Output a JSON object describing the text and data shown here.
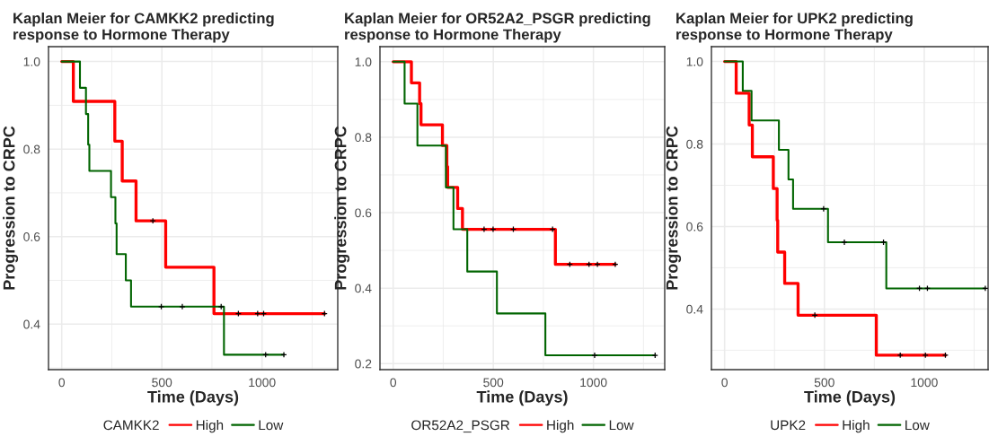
{
  "chart_data": [
    {
      "type": "step",
      "title": "Kaplan Meier for CAMKK2 predicting\nresponse to Hormone Therapy",
      "xlabel": "Time (Days)",
      "ylabel": "Progression to CRPC",
      "legend_title": "CAMKK2",
      "legend": "bottom",
      "grid": true,
      "xlim": [
        -66,
        1378
      ],
      "ylim": [
        0.296,
        1.034
      ],
      "xticks": [
        0,
        500,
        1000
      ],
      "yticks": [
        {
          "value": 0.4,
          "label": "0.4"
        },
        {
          "value": 0.6,
          "label": "0.6"
        },
        {
          "value": 0.8,
          "label": "0.8"
        },
        {
          "value": 1.0,
          "label": "1.0"
        }
      ],
      "series": [
        {
          "name": "High",
          "color": "#ff0000",
          "x": [
            0,
            58,
            265,
            302,
            371,
            519,
            760,
            1312
          ],
          "values": [
            1.0,
            0.909,
            0.818,
            0.727,
            0.636,
            0.53,
            0.424,
            0.424
          ]
        },
        {
          "name": "Low",
          "color": "#006400",
          "x": [
            0,
            91,
            121,
            132,
            138,
            246,
            268,
            274,
            320,
            346,
            810,
            1109
          ],
          "values": [
            1.0,
            0.94,
            0.88,
            0.81,
            0.75,
            0.69,
            0.63,
            0.56,
            0.5,
            0.44,
            0.33,
            0.33
          ]
        },
        {
          "type": "scatter",
          "marker": "cross",
          "color": "#000000",
          "x": [
            455,
            882,
            978,
            1008,
            1312,
            497,
            602,
            796,
            1018,
            1109
          ],
          "values": [
            0.636,
            0.424,
            0.424,
            0.424,
            0.424,
            0.44,
            0.44,
            0.44,
            0.33,
            0.33
          ]
        }
      ]
    },
    {
      "type": "step",
      "title": "Kaplan Meier for OR52A2_PSGR predicting\nresponse to Hormone Therapy",
      "xlabel": "Time (Days)",
      "ylabel": "Progression to CRPC",
      "legend_title": "OR52A2_PSGR",
      "legend": "bottom",
      "grid": true,
      "xlim": [
        -66,
        1356
      ],
      "ylim": [
        0.184,
        1.04
      ],
      "xticks": [
        0,
        500,
        1000
      ],
      "yticks": [
        0.2,
        0.4,
        0.6,
        0.8,
        {
          "value": 1.0,
          "label": "1.0"
        }
      ],
      "series": [
        {
          "name": "High",
          "color": "#ff0000",
          "x": [
            0,
            91,
            132,
            139,
            246,
            268,
            272,
            322,
            346,
            810,
            1109
          ],
          "values": [
            1.0,
            0.944,
            0.889,
            0.833,
            0.778,
            0.722,
            0.667,
            0.611,
            0.556,
            0.463,
            0.463
          ]
        },
        {
          "name": "Low",
          "color": "#006400",
          "x": [
            0,
            57,
            121,
            263,
            301,
            370,
            518,
            760,
            1308
          ],
          "values": [
            1.0,
            0.889,
            0.778,
            0.667,
            0.556,
            0.444,
            0.333,
            0.222,
            0.222
          ]
        },
        {
          "type": "scatter",
          "marker": "cross",
          "color": "#000000",
          "x": [
            454,
            499,
            600,
            796,
            882,
            978,
            1020,
            1109,
            1006,
            1308
          ],
          "values": [
            0.556,
            0.556,
            0.556,
            0.556,
            0.463,
            0.463,
            0.463,
            0.463,
            0.222,
            0.222
          ]
        }
      ]
    },
    {
      "type": "step",
      "title": "Kaplan Meier for UPK2 predicting\nresponse to Hormone Therapy",
      "xlabel": "Time (Days)",
      "ylabel": "Progression to CRPC",
      "legend_title": "UPK2",
      "legend": "bottom",
      "grid": true,
      "xlim": [
        -66,
        1320
      ],
      "ylim": [
        0.253,
        1.036
      ],
      "xticks": [
        0,
        500,
        1000
      ],
      "yticks": [
        0.4,
        0.6,
        0.8,
        {
          "value": 1.0,
          "label": "1.0"
        }
      ],
      "series": [
        {
          "name": "High",
          "color": "#ff0000",
          "x": [
            0,
            58,
            123,
            139,
            244,
            263,
            266,
            301,
            368,
            760,
            1106
          ],
          "values": [
            1.0,
            0.923,
            0.846,
            0.769,
            0.692,
            0.615,
            0.538,
            0.462,
            0.385,
            0.288,
            0.288
          ]
        },
        {
          "name": "Low",
          "color": "#006400",
          "x": [
            0,
            91,
            135,
            272,
            320,
            343,
            518,
            810,
            1306
          ],
          "values": [
            1.0,
            0.929,
            0.857,
            0.786,
            0.714,
            0.643,
            0.562,
            0.45,
            0.45
          ]
        },
        {
          "type": "scatter",
          "marker": "cross",
          "color": "#000000",
          "x": [
            452,
            880,
            1006,
            1106,
            496,
            600,
            796,
            976,
            1016,
            1306
          ],
          "values": [
            0.385,
            0.288,
            0.288,
            0.288,
            0.643,
            0.562,
            0.562,
            0.45,
            0.45,
            0.45
          ]
        }
      ]
    }
  ]
}
